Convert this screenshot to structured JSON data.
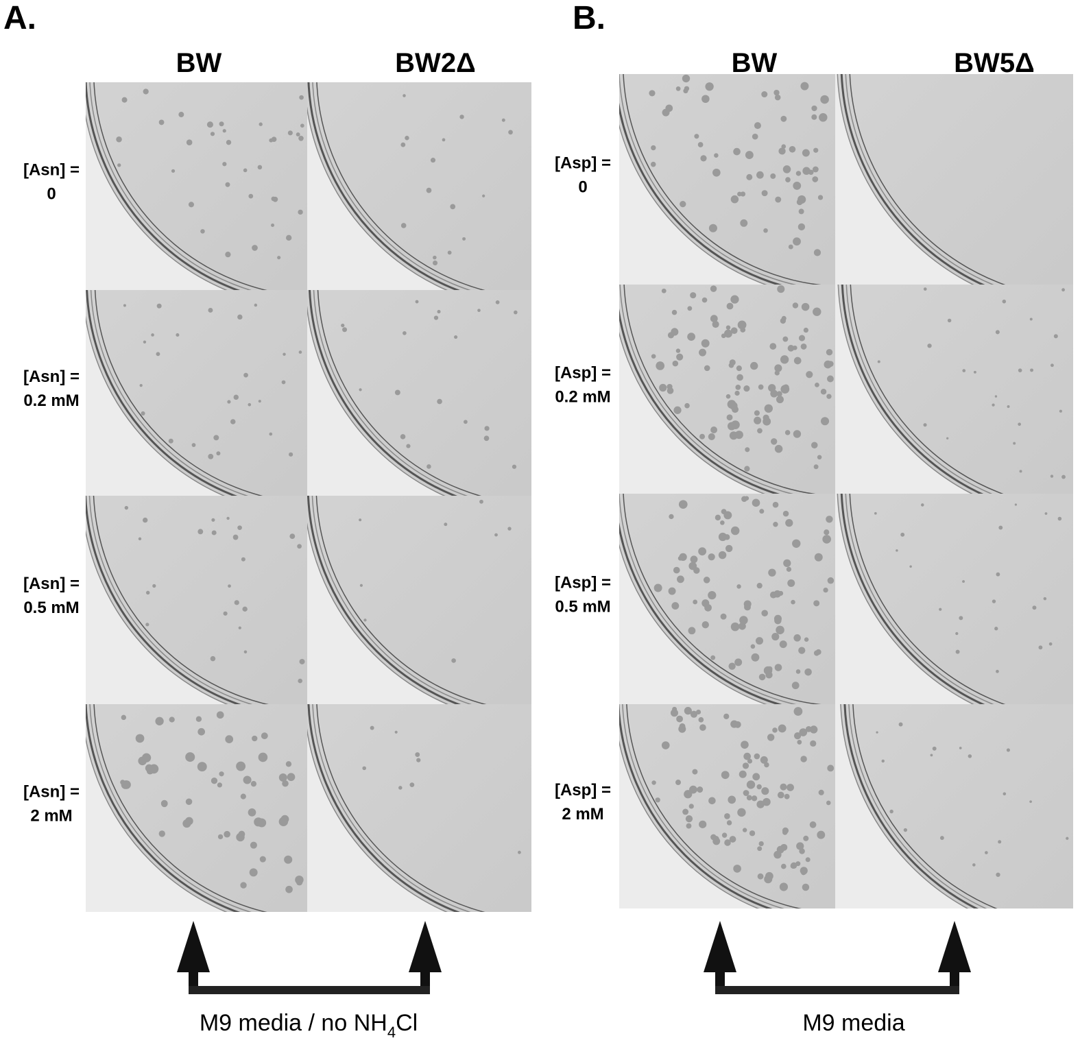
{
  "panels": [
    {
      "label": "A.",
      "columns": [
        "BW",
        "BW2Δ"
      ],
      "rows": [
        [
          "[Asn] =",
          "0"
        ],
        [
          "[Asn] =",
          "0.2 mM"
        ],
        [
          "[Asn] =",
          "0.5 mM"
        ],
        [
          "[Asn] =",
          "2 mM"
        ]
      ],
      "media": {
        "text": "M9 media / no NH",
        "subscript": "4",
        "suffix": "Cl"
      }
    },
    {
      "label": "B.",
      "columns": [
        "BW",
        "BW5Δ"
      ],
      "rows": [
        [
          "[Asp] =",
          "0"
        ],
        [
          "[Asp] =",
          "0.2 mM"
        ],
        [
          "[Asp] =",
          "0.5 mM"
        ],
        [
          "[Asp] =",
          "2 mM"
        ]
      ],
      "media": {
        "text": "M9 media"
      }
    }
  ]
}
